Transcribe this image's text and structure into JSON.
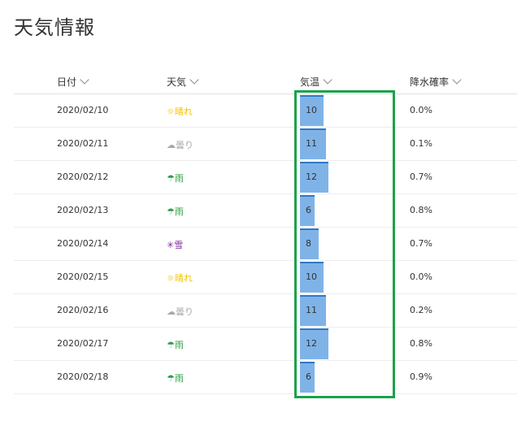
{
  "page": {
    "title": "天気情報"
  },
  "columns": {
    "date": "日付",
    "weather": "天気",
    "temperature": "気温",
    "rain": "降水確率"
  },
  "temp_scale_max": 12,
  "colors": {
    "sunny": "#f2c200",
    "cloudy": "#a8a8a8",
    "rain": "#2e9e44",
    "snow": "#7a2a9e",
    "bar_fill": "#7fb3e8",
    "bar_top": "#2e78c8",
    "highlight": "#1ba24a"
  },
  "rows": [
    {
      "date": "2020/02/10",
      "icon": "☼",
      "weather": "晴れ",
      "type": "sunny",
      "temp": 10,
      "rain": "0.0%"
    },
    {
      "date": "2020/02/11",
      "icon": "☁",
      "weather": "曇り",
      "type": "cloudy",
      "temp": 11,
      "rain": "0.1%"
    },
    {
      "date": "2020/02/12",
      "icon": "☂",
      "weather": "雨",
      "type": "rain",
      "temp": 12,
      "rain": "0.7%"
    },
    {
      "date": "2020/02/13",
      "icon": "☂",
      "weather": "雨",
      "type": "rain",
      "temp": 6,
      "rain": "0.8%"
    },
    {
      "date": "2020/02/14",
      "icon": "✳",
      "weather": "雪",
      "type": "snow",
      "temp": 8,
      "rain": "0.7%"
    },
    {
      "date": "2020/02/15",
      "icon": "☼",
      "weather": "晴れ",
      "type": "sunny",
      "temp": 10,
      "rain": "0.0%"
    },
    {
      "date": "2020/02/16",
      "icon": "☁",
      "weather": "曇り",
      "type": "cloudy",
      "temp": 11,
      "rain": "0.2%"
    },
    {
      "date": "2020/02/17",
      "icon": "☂",
      "weather": "雨",
      "type": "rain",
      "temp": 12,
      "rain": "0.8%"
    },
    {
      "date": "2020/02/18",
      "icon": "☂",
      "weather": "雨",
      "type": "rain",
      "temp": 6,
      "rain": "0.9%"
    }
  ]
}
